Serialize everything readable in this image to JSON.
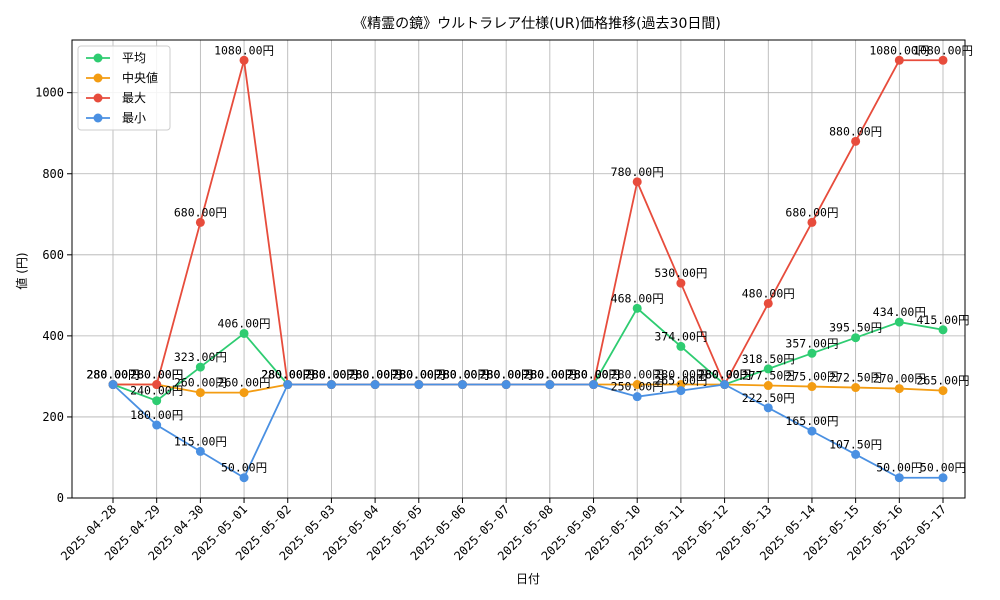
{
  "chart_data": {
    "type": "line",
    "title": "《精霊の鏡》ウルトラレア仕様(UR)価格推移(過去30日間)",
    "xlabel": "日付",
    "ylabel": "値 (円)",
    "ylim": [
      0,
      1130
    ],
    "yticks": [
      0,
      200,
      400,
      600,
      800,
      1000
    ],
    "grid": true,
    "legend_position": "top-left",
    "label_suffix": "円",
    "categories": [
      "2025-04-28",
      "2025-04-29",
      "2025-04-30",
      "2025-05-01",
      "2025-05-02",
      "2025-05-03",
      "2025-05-04",
      "2025-05-05",
      "2025-05-06",
      "2025-05-07",
      "2025-05-08",
      "2025-05-09",
      "2025-05-10",
      "2025-05-11",
      "2025-05-12",
      "2025-05-13",
      "2025-05-14",
      "2025-05-15",
      "2025-05-16",
      "2025-05-17"
    ],
    "series": [
      {
        "name": "平均",
        "color": "#2ecc71",
        "values": [
          280,
          240,
          323,
          406,
          280,
          280,
          280,
          280,
          280,
          280,
          280,
          280,
          468,
          374,
          280,
          318.5,
          357,
          395.5,
          434,
          415
        ]
      },
      {
        "name": "中央値",
        "color": "#f39c12",
        "values": [
          280,
          280,
          260,
          260,
          280,
          280,
          280,
          280,
          280,
          280,
          280,
          280,
          280,
          280,
          280,
          277.5,
          275,
          272.5,
          270,
          265
        ]
      },
      {
        "name": "最大",
        "color": "#e74c3c",
        "values": [
          280,
          280,
          680,
          1080,
          280,
          280,
          280,
          280,
          280,
          280,
          280,
          280,
          780,
          530,
          280,
          480,
          680,
          880,
          1080,
          1080
        ]
      },
      {
        "name": "最小",
        "color": "#4a90e2",
        "values": [
          280,
          180,
          115,
          50,
          280,
          280,
          280,
          280,
          280,
          280,
          280,
          280,
          250,
          265,
          280,
          222.5,
          165,
          107.5,
          50,
          50
        ]
      }
    ]
  }
}
